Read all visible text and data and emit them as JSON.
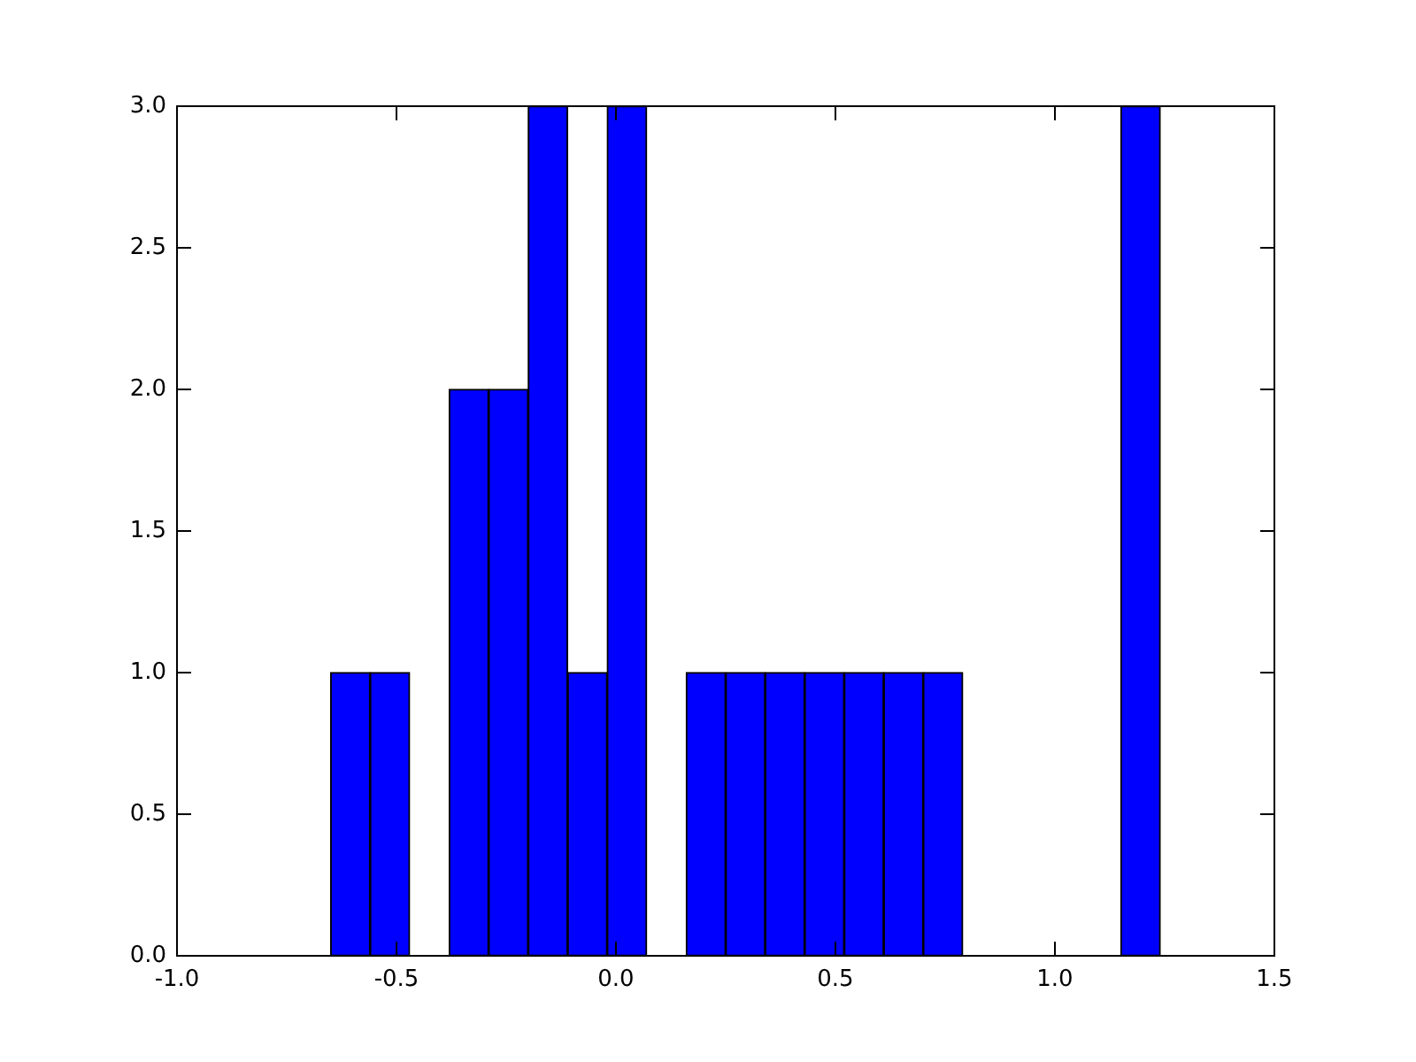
{
  "chart_data": {
    "type": "histogram",
    "bins": [
      -0.65,
      -0.56,
      -0.47,
      -0.38,
      -0.29,
      -0.2,
      -0.11,
      -0.02,
      0.07,
      0.16,
      0.25,
      0.34,
      0.43,
      0.52,
      0.61,
      0.7,
      0.79,
      0.88,
      0.97,
      1.06,
      1.15,
      1.24
    ],
    "values": [
      1,
      1,
      0,
      2,
      2,
      3,
      1,
      3,
      0,
      1,
      1,
      1,
      1,
      1,
      1,
      1,
      0,
      0,
      0,
      0,
      3
    ],
    "color": "#0000ff",
    "xlim": [
      -1.0,
      1.5
    ],
    "xticks": [
      {
        "value": -1.0,
        "label": "-1.0"
      },
      {
        "value": -0.5,
        "label": "-0.5"
      },
      {
        "value": 0,
        "label": "0.0"
      },
      {
        "value": 0.5,
        "label": "0.5"
      },
      {
        "value": 1.0,
        "label": "1.0"
      },
      {
        "value": 1.5,
        "label": "1.5"
      }
    ],
    "ylim": [
      0,
      3
    ],
    "yticks": [
      {
        "value": 0,
        "label": "0.0"
      },
      {
        "value": 0.5,
        "label": "0.5"
      },
      {
        "value": 1,
        "label": "1.0"
      },
      {
        "value": 1.5,
        "label": "1.5"
      },
      {
        "value": 2,
        "label": "2.0"
      },
      {
        "value": 2.5,
        "label": "2.5"
      },
      {
        "value": 3,
        "label": "3.0"
      }
    ],
    "grid": false
  }
}
